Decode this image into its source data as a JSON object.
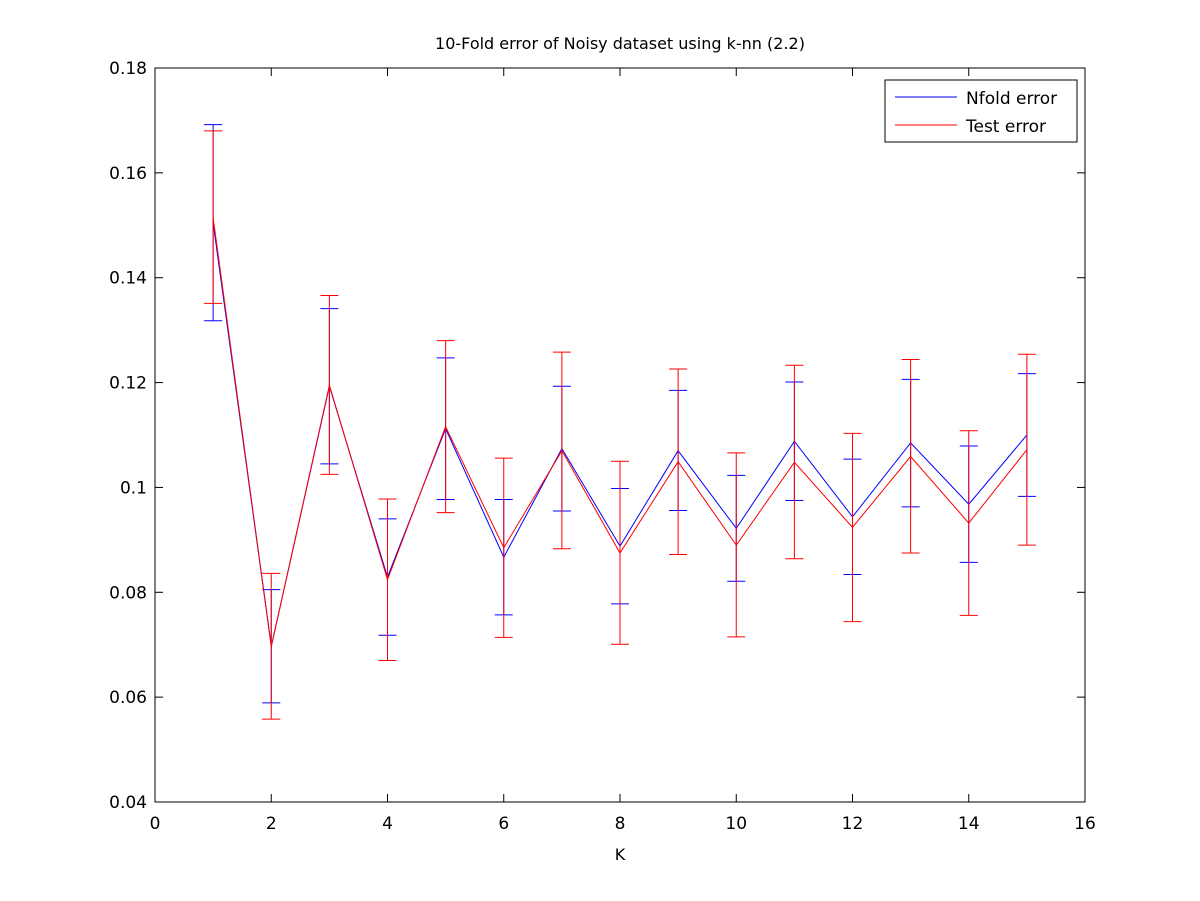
{
  "chart_data": {
    "type": "line",
    "title": "10-Fold error of Noisy dataset using k-nn (2.2)",
    "xlabel": "K",
    "ylabel": "",
    "xlim": [
      0,
      16
    ],
    "ylim": [
      0.04,
      0.18
    ],
    "x_ticks": [
      0,
      2,
      4,
      6,
      8,
      10,
      12,
      14,
      16
    ],
    "x_tick_labels": [
      "0",
      "2",
      "4",
      "6",
      "8",
      "10",
      "12",
      "14",
      "16"
    ],
    "y_ticks": [
      0.04,
      0.06,
      0.08,
      0.1,
      0.12,
      0.14,
      0.16,
      0.18
    ],
    "y_tick_labels": [
      "0.04",
      "0.06",
      "0.08",
      "0.1",
      "0.12",
      "0.14",
      "0.16",
      "0.18"
    ],
    "grid": false,
    "legend_position": "top-right",
    "x": [
      1,
      2,
      3,
      4,
      5,
      6,
      7,
      8,
      9,
      10,
      11,
      12,
      13,
      14,
      15
    ],
    "series": [
      {
        "name": "Nfold error",
        "color": "#0000ff",
        "values": [
          0.1505,
          0.0697,
          0.1193,
          0.0829,
          0.1112,
          0.0867,
          0.1074,
          0.0888,
          0.107,
          0.0922,
          0.1088,
          0.0944,
          0.1085,
          0.0968,
          0.11
        ],
        "lower": [
          0.1318,
          0.0589,
          0.1045,
          0.0718,
          0.0977,
          0.0757,
          0.0955,
          0.0778,
          0.0956,
          0.0821,
          0.0975,
          0.0834,
          0.0963,
          0.0857,
          0.0983
        ],
        "upper": [
          0.1692,
          0.0805,
          0.1341,
          0.094,
          0.1247,
          0.0977,
          0.1193,
          0.0998,
          0.1185,
          0.1023,
          0.1201,
          0.1054,
          0.1206,
          0.1079,
          0.1217
        ]
      },
      {
        "name": "Test error",
        "color": "#ff0000",
        "values": [
          0.1515,
          0.0697,
          0.1195,
          0.0824,
          0.1116,
          0.0885,
          0.107,
          0.0875,
          0.1049,
          0.089,
          0.1048,
          0.0924,
          0.1059,
          0.0932,
          0.1072
        ],
        "lower": [
          0.1351,
          0.0558,
          0.1025,
          0.067,
          0.0952,
          0.0714,
          0.0883,
          0.0701,
          0.0872,
          0.0715,
          0.0864,
          0.0744,
          0.0875,
          0.0756,
          0.089
        ],
        "upper": [
          0.168,
          0.0836,
          0.1366,
          0.0978,
          0.128,
          0.1056,
          0.1258,
          0.105,
          0.1226,
          0.1066,
          0.1233,
          0.1103,
          0.1244,
          0.1108,
          0.1254
        ]
      }
    ]
  }
}
